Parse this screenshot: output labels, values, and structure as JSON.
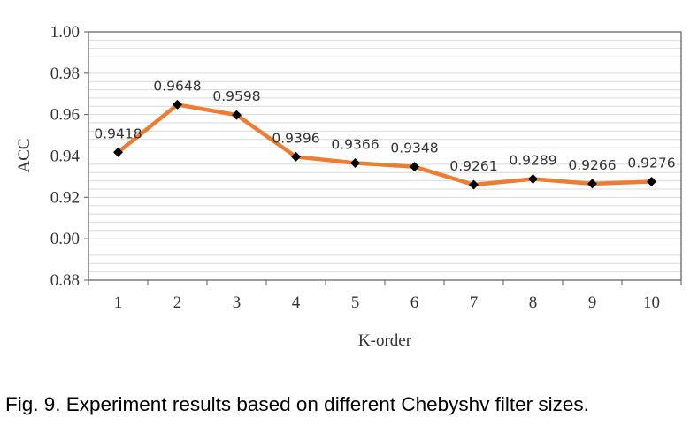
{
  "chart_data": {
    "type": "line",
    "categories": [
      "1",
      "2",
      "3",
      "4",
      "5",
      "6",
      "7",
      "8",
      "9",
      "10"
    ],
    "series": [
      {
        "values": [
          0.9418,
          0.9648,
          0.9598,
          0.9396,
          0.9366,
          0.9348,
          0.9261,
          0.9289,
          0.9266,
          0.9276
        ],
        "data_labels": [
          "0.9418",
          "0.9648",
          "0.9598",
          "0.9396",
          "0.9366",
          "0.9348",
          "0.9261",
          "0.9289",
          "0.9266",
          "0.9276"
        ],
        "color": "#ED7D31",
        "marker": "diamond",
        "marker_color": "#000000"
      }
    ],
    "xlabel": "K-order",
    "ylabel": "ACC",
    "ylim": [
      0.88,
      1.0
    ],
    "y_major_step": 0.02,
    "y_minor_step": 0.004,
    "y_tick_labels": [
      "0.88",
      "0.90",
      "0.92",
      "0.94",
      "0.96",
      "0.98",
      "1.00"
    ],
    "grid": true,
    "grid_color": "#d9d9d9",
    "legend": "none"
  },
  "caption": "Fig. 9. Experiment results based on different Chebyshv filter sizes."
}
